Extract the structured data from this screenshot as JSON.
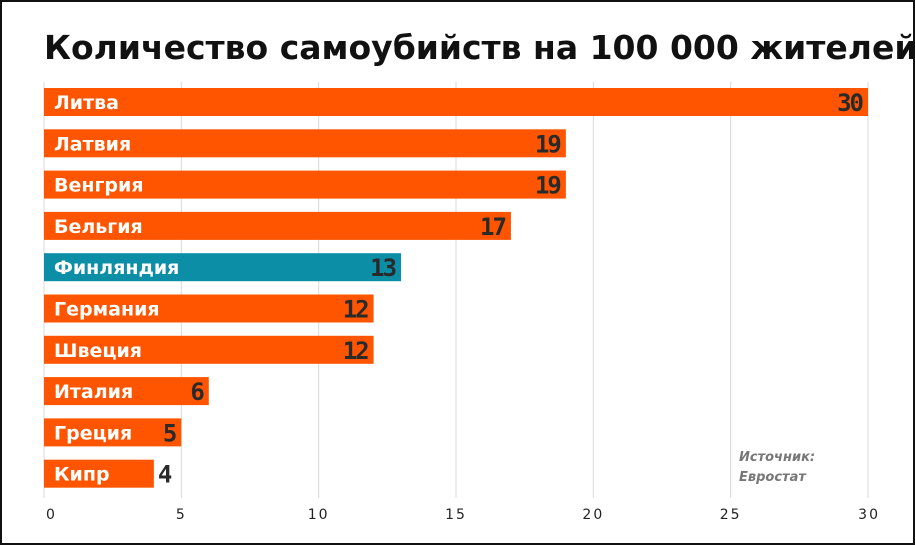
{
  "chart_data": {
    "type": "bar",
    "orientation": "horizontal",
    "title": "Количество самоубийств на 100 000 жителей",
    "categories": [
      "Литва",
      "Латвия",
      "Венгрия",
      "Бельгия",
      "Финляндия",
      "Германия",
      "Швеция",
      "Италия",
      "Греция",
      "Кипр"
    ],
    "values": [
      30,
      19,
      19,
      17,
      13,
      12,
      12,
      6,
      5,
      4
    ],
    "highlight": "Финляндия",
    "xlim": [
      0,
      30
    ],
    "xticks": [
      0,
      5,
      10,
      15,
      20,
      25,
      30
    ],
    "grid": "vertical",
    "source": [
      "Источник:",
      "Евростат"
    ]
  },
  "colors": {
    "bar": "#ff5500",
    "highlight": "#0c8ea6",
    "title": "#111111"
  }
}
